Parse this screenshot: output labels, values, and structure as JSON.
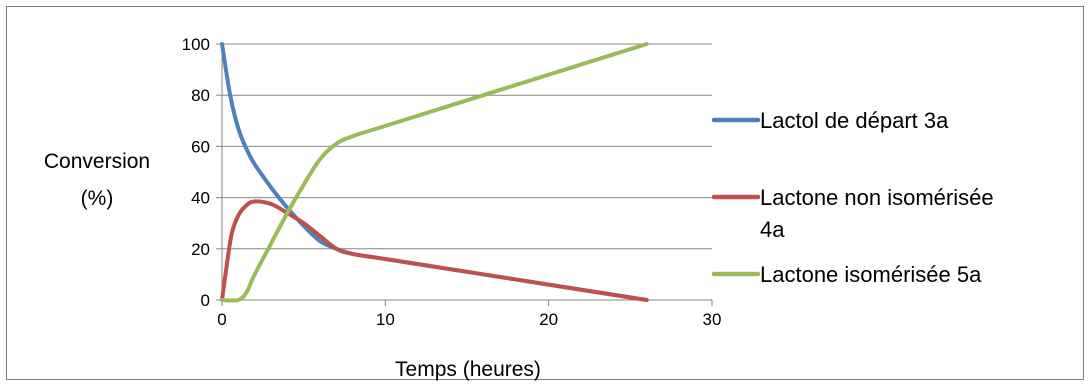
{
  "chart_data": {
    "type": "line",
    "title": "",
    "xlabel": "Temps (heures)",
    "ylabel_lines": [
      "Conversion",
      "(%)"
    ],
    "xlim": [
      0,
      30
    ],
    "ylim": [
      0,
      100
    ],
    "xticks": [
      0,
      10,
      20,
      30
    ],
    "yticks": [
      0,
      20,
      40,
      60,
      80,
      100
    ],
    "grid": "horizontal",
    "legend_position": "right",
    "series": [
      {
        "name": "Lactol de départ 3a",
        "color": "#4f81bd",
        "x": [
          0,
          0.5,
          1,
          1.5,
          2,
          3,
          4,
          5,
          6,
          7,
          8,
          10,
          15,
          20,
          26
        ],
        "y": [
          100,
          80,
          67,
          59,
          53,
          44,
          36,
          29,
          23,
          20,
          18,
          16,
          11,
          6,
          0
        ]
      },
      {
        "name": "Lactone non isomérisée 4a",
        "name_lines": [
          "Lactone non isomérisée",
          "4a"
        ],
        "color": "#c0504d",
        "x": [
          0,
          0.3,
          0.6,
          1,
          1.5,
          2,
          3,
          4,
          5,
          6,
          7,
          8,
          10,
          15,
          20,
          26
        ],
        "y": [
          0,
          14,
          26,
          33,
          37,
          38.5,
          37.5,
          34,
          30,
          25,
          20,
          18,
          16,
          11,
          6,
          0
        ]
      },
      {
        "name": "Lactone isomérisée 5a",
        "color": "#9bbb59",
        "x": [
          0,
          1,
          1.5,
          2,
          3,
          4,
          5,
          6,
          7,
          8,
          10,
          15,
          20,
          26
        ],
        "y": [
          0,
          0,
          3,
          10,
          22,
          34,
          45,
          55,
          61,
          64,
          68,
          78,
          88,
          100
        ]
      }
    ]
  }
}
